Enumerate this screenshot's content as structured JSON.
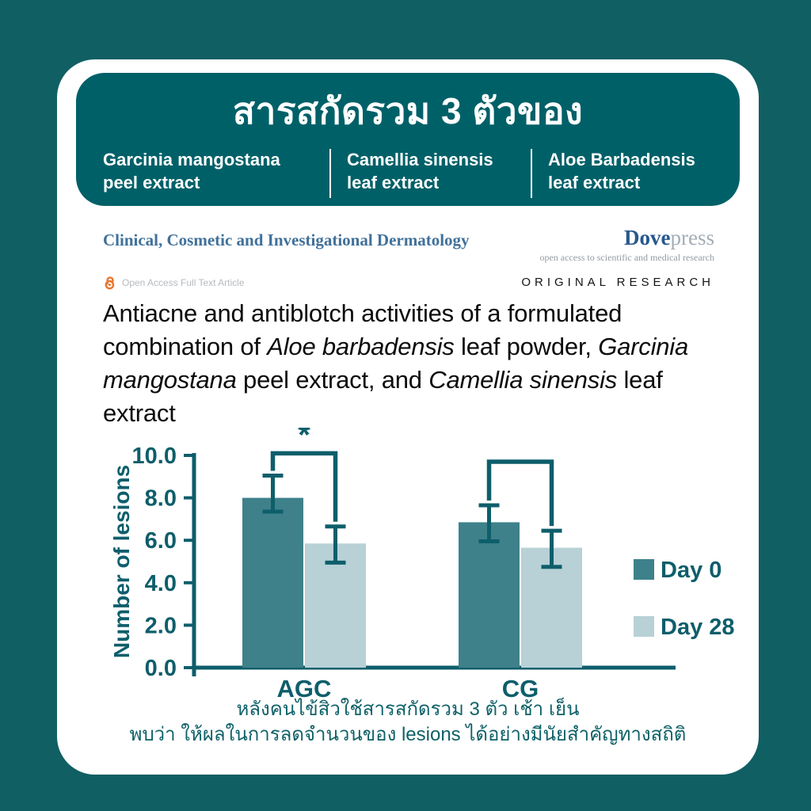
{
  "header": {
    "title": "สารสกัดรวม 3 ตัวของ",
    "extracts": [
      {
        "name": "Garcinia mangostana",
        "part": "peel extract"
      },
      {
        "name": "Camellia sinensis",
        "part": "leaf extract"
      },
      {
        "name": "Aloe Barbadensis",
        "part": "leaf extract"
      }
    ]
  },
  "journal": {
    "name": "Clinical, Cosmetic and Investigational Dermatology",
    "publisher_bold": "Dove",
    "publisher_light": "press",
    "tagline": "open access to scientific and medical research",
    "open_access_label": "Open Access Full Text Article",
    "article_type": "ORIGINAL RESEARCH"
  },
  "paper": {
    "title_segments": [
      {
        "text": "Antiacne and antiblotch activities of a formulated combination of ",
        "italic": false
      },
      {
        "text": "Aloe barbadensis",
        "italic": true
      },
      {
        "text": " leaf powder, ",
        "italic": false
      },
      {
        "text": "Garcinia mangostana",
        "italic": true
      },
      {
        "text": " peel extract, and ",
        "italic": false
      },
      {
        "text": "Camellia sinensis",
        "italic": true
      },
      {
        "text": " leaf extract",
        "italic": false
      }
    ]
  },
  "chart_data": {
    "type": "bar",
    "title": "",
    "xlabel": "",
    "ylabel": "Number of lesions",
    "ylim": [
      0,
      10
    ],
    "yticks": [
      "0.0",
      "2.0",
      "4.0",
      "6.0",
      "8.0",
      "10.0"
    ],
    "ytick_values": [
      0,
      2,
      4,
      6,
      8,
      10
    ],
    "categories": [
      "AGC",
      "CG"
    ],
    "series": [
      {
        "name": "Day 0",
        "color": "#3e818a",
        "values": [
          8.0,
          6.85
        ],
        "errors": [
          {
            "low": 7.35,
            "high": 9.05
          },
          {
            "low": 5.95,
            "high": 7.65
          }
        ]
      },
      {
        "name": "Day 28",
        "color": "#b7d1d6",
        "values": [
          5.85,
          5.65
        ],
        "errors": [
          {
            "low": 4.95,
            "high": 6.65
          },
          {
            "low": 4.75,
            "high": 6.45
          }
        ]
      }
    ],
    "significance": [
      {
        "category": "AGC",
        "label": "*",
        "height": 10.1
      },
      {
        "category": "CG",
        "label": "",
        "height": 9.7
      }
    ],
    "axis_color": "#0e5e6b",
    "legend_position": "right",
    "grid": false
  },
  "caption": {
    "line1": "หลังคนไข้สิวใช้สารสกัดรวม 3 ตัว เช้า เย็น",
    "line2": "พบว่า ให้ผลในการลดจำนวนของ lesions ได้อย่างมีนัยสำคัญทางสถิติ"
  },
  "colors": {
    "page_bg": "#105f63",
    "header_bg": "#006068",
    "card_bg": "#ffffff",
    "journal_blue": "#40719a",
    "dove_blue": "#27588e",
    "dove_gray": "#a3adb5",
    "tagline_gray": "#939ba3",
    "open_access_orange": "#e8762d",
    "open_access_text": "#b6babf",
    "teal_ink": "#0e5e6b",
    "day0_bar": "#3e818a",
    "day28_bar": "#b7d1d6",
    "caption_teal": "#0f6168"
  }
}
